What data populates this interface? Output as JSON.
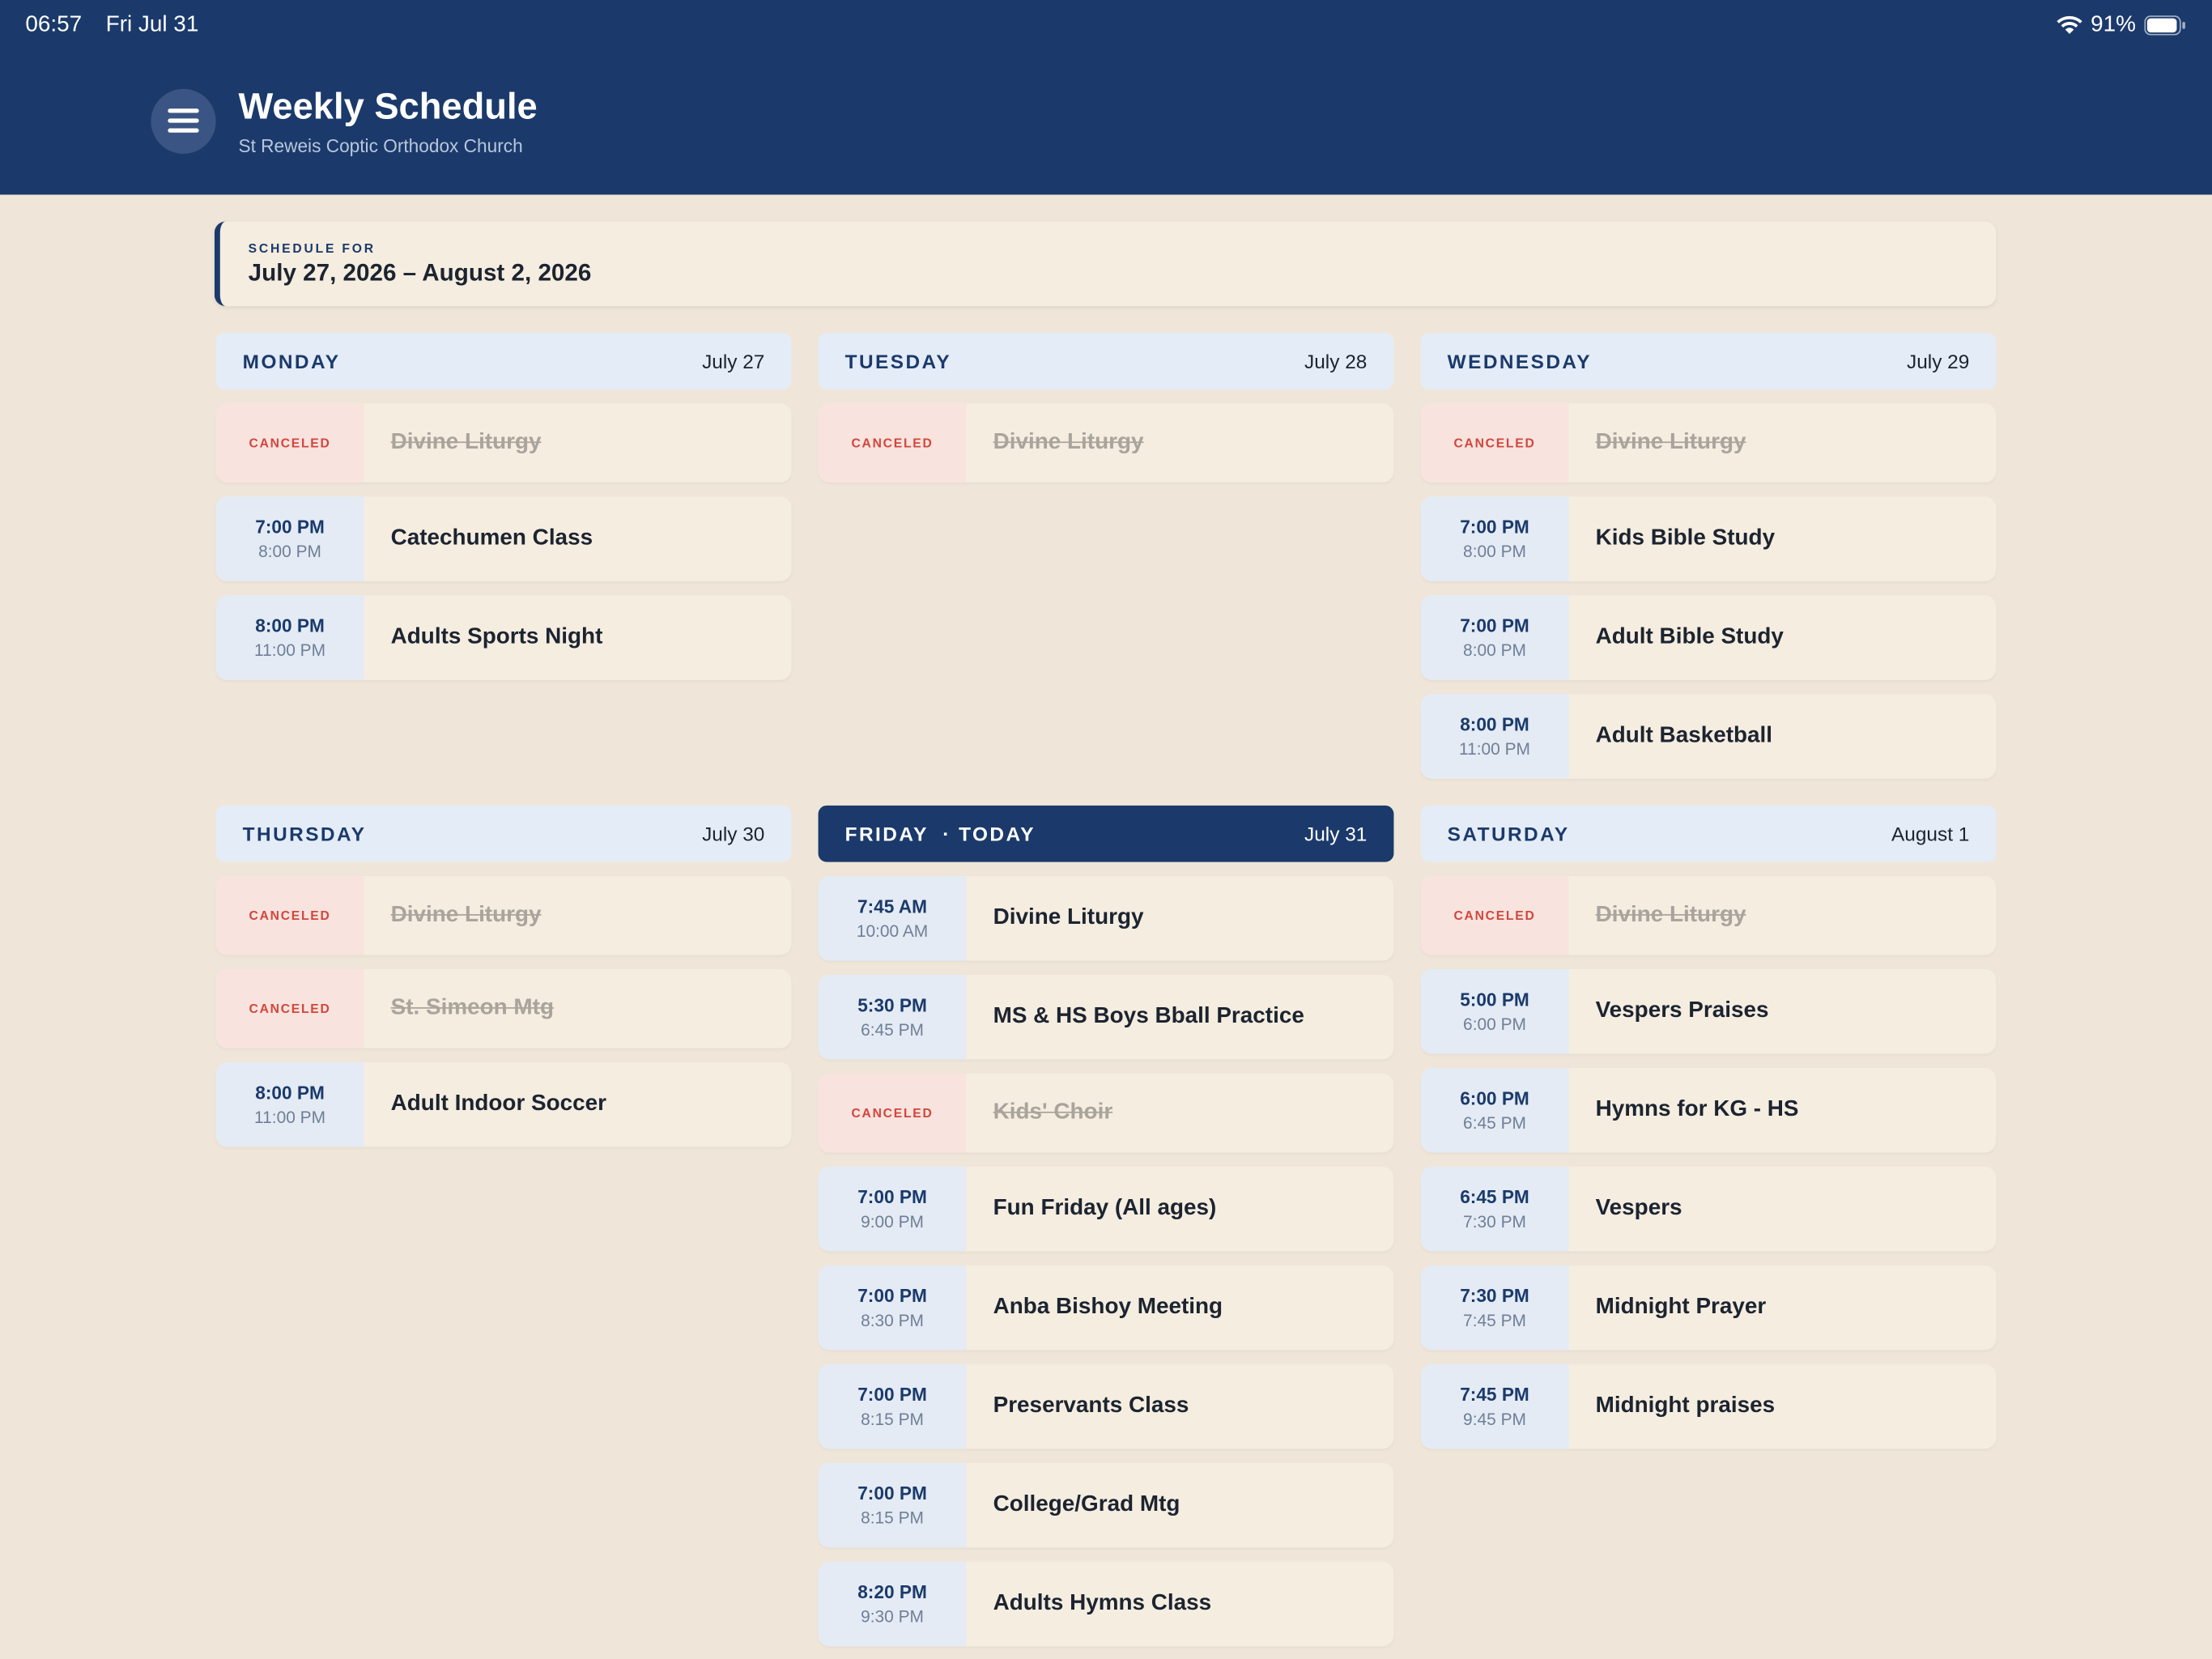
{
  "status_bar": {
    "time": "06:57",
    "date": "Fri Jul 31",
    "battery": "91%"
  },
  "header": {
    "title": "Weekly Schedule",
    "subtitle": "St Reweis Coptic Orthodox Church"
  },
  "range": {
    "label": "SCHEDULE FOR",
    "dates": "July 27, 2026 – August 2, 2026"
  },
  "days": [
    {
      "name": "MONDAY",
      "date": "July 27",
      "events": [
        {
          "status": "CANCELED",
          "title": "Divine Liturgy"
        },
        {
          "start": "7:00 PM",
          "end": "8:00 PM",
          "title": "Catechumen Class"
        },
        {
          "start": "8:00 PM",
          "end": "11:00 PM",
          "title": "Adults Sports Night"
        }
      ]
    },
    {
      "name": "TUESDAY",
      "date": "July 28",
      "events": [
        {
          "status": "CANCELED",
          "title": "Divine Liturgy"
        }
      ]
    },
    {
      "name": "WEDNESDAY",
      "date": "July 29",
      "events": [
        {
          "status": "CANCELED",
          "title": "Divine Liturgy"
        },
        {
          "start": "7:00 PM",
          "end": "8:00 PM",
          "title": "Kids Bible Study"
        },
        {
          "start": "7:00 PM",
          "end": "8:00 PM",
          "title": "Adult Bible Study"
        },
        {
          "start": "8:00 PM",
          "end": "11:00 PM",
          "title": "Adult Basketball"
        }
      ]
    },
    {
      "name": "THURSDAY",
      "date": "July 30",
      "events": [
        {
          "status": "CANCELED",
          "title": "Divine Liturgy"
        },
        {
          "status": "CANCELED",
          "title": "St. Simeon Mtg"
        },
        {
          "start": "8:00 PM",
          "end": "11:00 PM",
          "title": "Adult Indoor Soccer"
        }
      ]
    },
    {
      "name": "FRIDAY",
      "tag": "· TODAY",
      "date": "July 31",
      "events": [
        {
          "start": "7:45 AM",
          "end": "10:00 AM",
          "title": "Divine Liturgy"
        },
        {
          "start": "5:30 PM",
          "end": "6:45 PM",
          "title": "MS & HS Boys Bball Practice"
        },
        {
          "status": "CANCELED",
          "title": "Kids' Choir"
        },
        {
          "start": "7:00 PM",
          "end": "9:00 PM",
          "title": "Fun Friday (All ages)"
        },
        {
          "start": "7:00 PM",
          "end": "8:30 PM",
          "title": "Anba Bishoy Meeting"
        },
        {
          "start": "7:00 PM",
          "end": "8:15 PM",
          "title": "Preservants Class"
        },
        {
          "start": "7:00 PM",
          "end": "8:15 PM",
          "title": "College/Grad Mtg"
        },
        {
          "start": "8:20 PM",
          "end": "9:30 PM",
          "title": "Adults Hymns Class"
        }
      ]
    },
    {
      "name": "SATURDAY",
      "date": "August 1",
      "events": [
        {
          "status": "CANCELED",
          "title": "Divine Liturgy"
        },
        {
          "start": "5:00 PM",
          "end": "6:00 PM",
          "title": "Vespers Praises"
        },
        {
          "start": "6:00 PM",
          "end": "6:45 PM",
          "title": "Hymns for KG - HS"
        },
        {
          "start": "6:45 PM",
          "end": "7:30 PM",
          "title": "Vespers"
        },
        {
          "start": "7:30 PM",
          "end": "7:45 PM",
          "title": "Midnight Prayer"
        },
        {
          "start": "7:45 PM",
          "end": "9:45 PM",
          "title": "Midnight praises"
        }
      ]
    }
  ]
}
